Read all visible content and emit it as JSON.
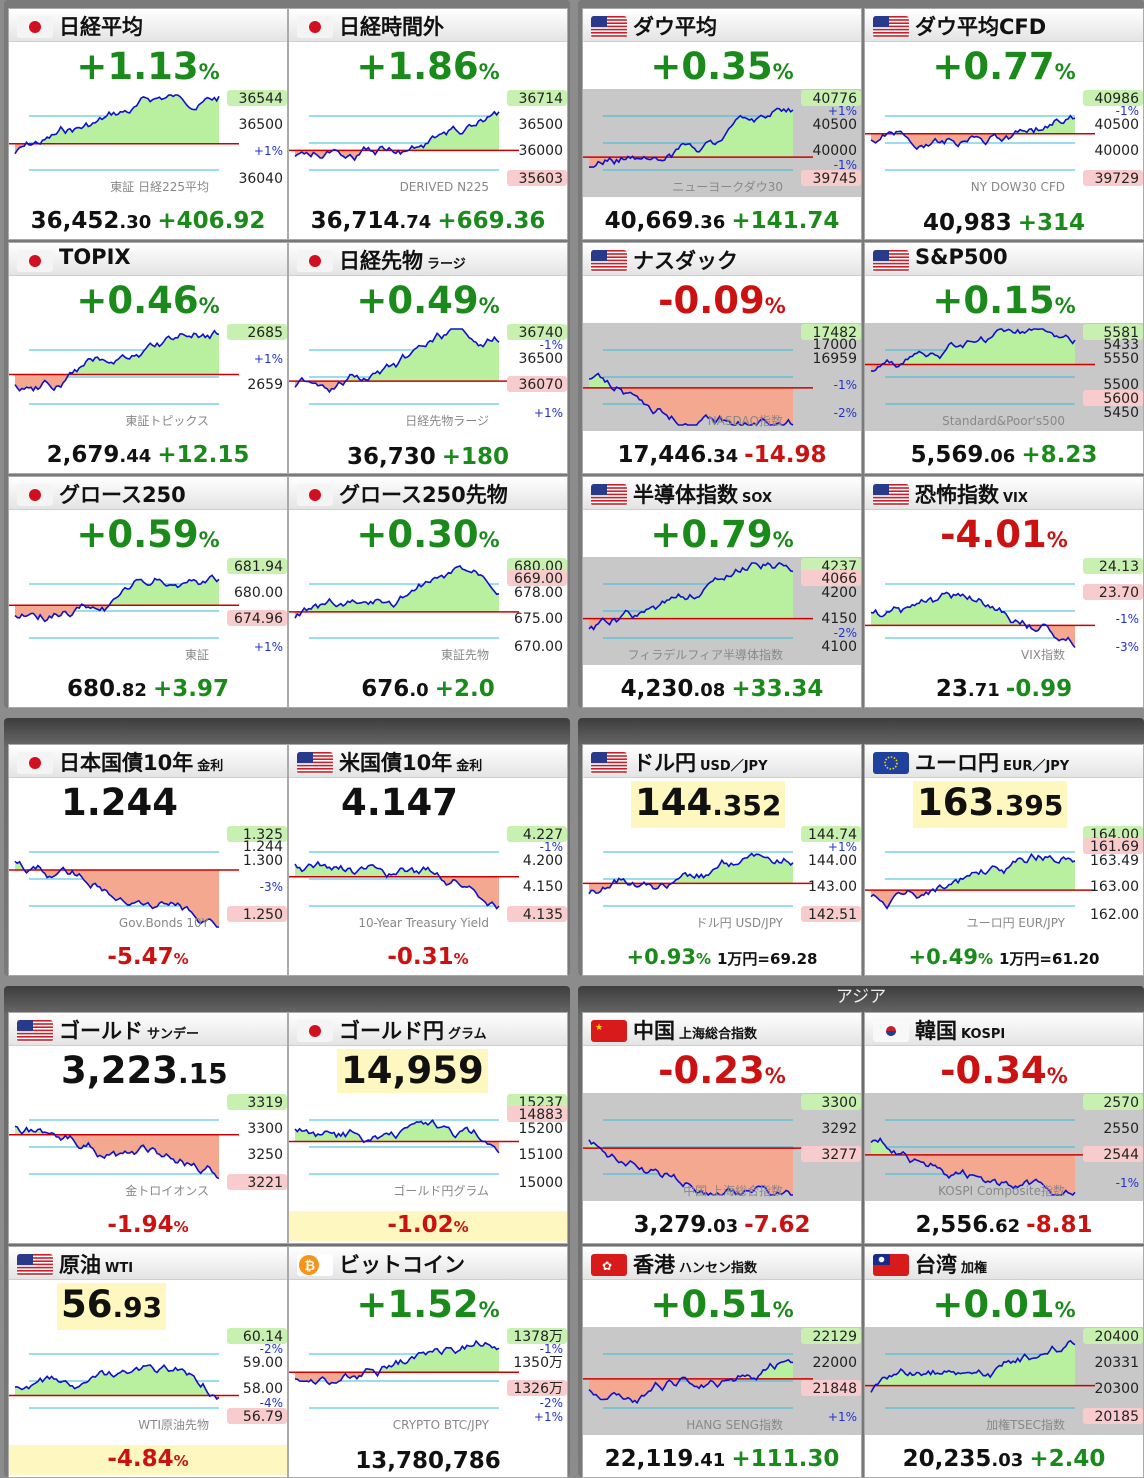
{
  "sections": {
    "asia_label": "アジア"
  },
  "cards": [
    {
      "id": "nikkei",
      "flag": "jp",
      "title": "日経平均",
      "sub": "",
      "pct": "+1.13",
      "pct_unit": "%",
      "dir": "up",
      "price_int": "36,452",
      "price_dec": ".30",
      "change": "+406.92",
      "chg_dir": "up",
      "chart_label": "東証 日経225平均",
      "labels": [
        "36544",
        "36500",
        "+1%",
        "36040"
      ]
    },
    {
      "id": "nikkei_after",
      "flag": "jp",
      "title": "日経時間外",
      "sub": "",
      "pct": "+1.86",
      "pct_unit": "%",
      "dir": "up",
      "price_int": "36,714",
      "price_dec": ".74",
      "change": "+669.36",
      "chg_dir": "up",
      "chart_label": "DERIVED N225",
      "labels": [
        "36714",
        "36500",
        "36000",
        "35603"
      ]
    },
    {
      "id": "dow",
      "flag": "us",
      "title": "ダウ平均",
      "sub": "",
      "pct": "+0.35",
      "pct_unit": "%",
      "dir": "up",
      "price_int": "40,669",
      "price_dec": ".36",
      "change": "+141.74",
      "chg_dir": "up",
      "chart_label": "ニューヨークダウ30",
      "labels": [
        "40776",
        "40500",
        "40000",
        "39745",
        "+1%",
        "-1%"
      ]
    },
    {
      "id": "dow_cfd",
      "flag": "us",
      "title": "ダウ平均CFD",
      "sub": "",
      "pct": "+0.77",
      "pct_unit": "%",
      "dir": "up",
      "price_int": "40,983",
      "price_dec": "",
      "change": "+314",
      "chg_dir": "up",
      "chart_label": "NY DOW30 CFD",
      "labels": [
        "40986",
        "40500",
        "40000",
        "39729",
        "-1%"
      ]
    },
    {
      "id": "topix",
      "flag": "jp",
      "title": "TOPIX",
      "sub": "",
      "pct": "+0.46",
      "pct_unit": "%",
      "dir": "up",
      "price_int": "2,679",
      "price_dec": ".44",
      "change": "+12.15",
      "chg_dir": "up",
      "chart_label": "東証トピックス",
      "labels": [
        "2685",
        "+1%",
        "2659"
      ]
    },
    {
      "id": "nikkei_fut",
      "flag": "jp",
      "title": "日経先物",
      "sub": "ラージ",
      "pct": "+0.49",
      "pct_unit": "%",
      "dir": "up",
      "price_int": "36,730",
      "price_dec": "",
      "change": "+180",
      "chg_dir": "up",
      "chart_label": "日経先物ラージ",
      "labels": [
        "36740",
        "36500",
        "36070",
        "+1%",
        "-1%"
      ]
    },
    {
      "id": "nasdaq",
      "flag": "us",
      "title": "ナスダック",
      "sub": "",
      "pct": "-0.09",
      "pct_unit": "%",
      "dir": "down",
      "price_int": "17,446",
      "price_dec": ".34",
      "change": "-14.98",
      "chg_dir": "down",
      "chart_label": "NASDAQ指数",
      "labels": [
        "17482",
        "16959",
        "-1%",
        "-2%",
        "17000"
      ]
    },
    {
      "id": "sp500",
      "flag": "us",
      "title": "S&P500",
      "sub": "",
      "pct": "+0.15",
      "pct_unit": "%",
      "dir": "up",
      "price_int": "5,569",
      "price_dec": ".06",
      "change": "+8.23",
      "chg_dir": "up",
      "chart_label": "Standard&Poor's500",
      "labels": [
        "5581",
        "5550",
        "5500",
        "5450",
        "5433",
        "5600"
      ]
    },
    {
      "id": "growth250",
      "flag": "jp",
      "title": "グロース250",
      "sub": "",
      "pct": "+0.59",
      "pct_unit": "%",
      "dir": "up",
      "price_int": "680",
      "price_dec": ".82",
      "change": "+3.97",
      "chg_dir": "up",
      "chart_label": "東証",
      "labels": [
        "681.94",
        "680.00",
        "674.96",
        "+1%"
      ]
    },
    {
      "id": "growth250_fut",
      "flag": "jp",
      "title": "グロース250先物",
      "sub": "",
      "pct": "+0.30",
      "pct_unit": "%",
      "dir": "up",
      "price_int": "676",
      "price_dec": ".0",
      "change": "+2.0",
      "chg_dir": "up",
      "chart_label": "東証先物",
      "labels": [
        "680.00",
        "678.00",
        "675.00",
        "670.00",
        "669.00"
      ]
    },
    {
      "id": "sox",
      "flag": "us",
      "title": "半導体指数",
      "sub": "SOX",
      "pct": "+0.79",
      "pct_unit": "%",
      "dir": "up",
      "price_int": "4,230",
      "price_dec": ".08",
      "change": "+33.34",
      "chg_dir": "up",
      "chart_label": "フィラデルフィア半導体指数",
      "labels": [
        "4237",
        "4200",
        "4150",
        "4100",
        "4066",
        "-2%"
      ]
    },
    {
      "id": "vix",
      "flag": "us",
      "title": "恐怖指数",
      "sub": "VIX",
      "pct": "-4.01",
      "pct_unit": "%",
      "dir": "down",
      "price_int": "23",
      "price_dec": ".71",
      "change": "-0.99",
      "chg_dir": "up",
      "chart_label": "VIX指数",
      "labels": [
        "24.13",
        "23.70",
        "-1%",
        "-3%"
      ]
    },
    {
      "id": "jgb10",
      "flag": "jp",
      "title": "日本国債10年",
      "sub": "金利",
      "big_int": "1.244",
      "big_dec": "",
      "pct": "-5.47",
      "pct_unit": "%",
      "dir": "down",
      "chart_label": "Gov.Bonds 10Y",
      "labels": [
        "1.325",
        "1.300",
        "-3%",
        "1.250",
        "1.244"
      ]
    },
    {
      "id": "ust10",
      "flag": "us",
      "title": "米国債10年",
      "sub": "金利",
      "big_int": "4.147",
      "big_dec": "",
      "pct": "-0.31",
      "pct_unit": "%",
      "dir": "down",
      "chart_label": "10-Year Treasury Yield",
      "labels": [
        "4.227",
        "4.200",
        "4.150",
        "4.135",
        "-1%"
      ]
    },
    {
      "id": "usdjpy",
      "flag": "us",
      "title": "ドル円",
      "sub": "USD／JPY",
      "big_int": "144",
      "big_dec": ".352",
      "pct": "+0.93",
      "pct_unit": "%",
      "dir": "up",
      "rate": "1万円=69.28",
      "chart_label": "ドル円 USD/JPY",
      "labels": [
        "144.74",
        "144.00",
        "143.00",
        "142.51",
        "+1%"
      ]
    },
    {
      "id": "eurjpy",
      "flag": "eu",
      "title": "ユーロ円",
      "sub": "EUR／JPY",
      "big_int": "163",
      "big_dec": ".395",
      "pct": "+0.49",
      "pct_unit": "%",
      "dir": "up",
      "rate": "1万円=61.20",
      "chart_label": "ユーロ円 EUR/JPY",
      "labels": [
        "164.00",
        "163.49",
        "163.00",
        "162.00",
        "161.69"
      ]
    },
    {
      "id": "gold",
      "flag": "us",
      "title": "ゴールド",
      "sub": "サンデー",
      "big_int": "3,223",
      "big_dec": ".15",
      "pct": "-1.94",
      "pct_unit": "%",
      "dir": "down",
      "chart_label": "金トロイオンス",
      "labels": [
        "3319",
        "3300",
        "3250",
        "3221"
      ]
    },
    {
      "id": "gold_jpy",
      "flag": "jp",
      "title": "ゴールド円",
      "sub": "グラム",
      "big_int": "14,959",
      "big_dec": "",
      "pct": "-1.02",
      "pct_unit": "%",
      "dir": "down",
      "chart_label": "ゴールド円グラム",
      "labels": [
        "15237",
        "15200",
        "15100",
        "15000",
        "14883"
      ]
    },
    {
      "id": "china",
      "flag": "cn",
      "title": "中国",
      "sub": "上海総合指数",
      "pct": "-0.23",
      "pct_unit": "%",
      "dir": "down",
      "price_int": "3,279",
      "price_dec": ".03",
      "change": "-7.62",
      "chg_dir": "down",
      "chart_label": "中国 上海総合指数",
      "labels": [
        "3300",
        "3292",
        "3277"
      ]
    },
    {
      "id": "korea",
      "flag": "kr",
      "title": "韓国",
      "sub": "KOSPI",
      "pct": "-0.34",
      "pct_unit": "%",
      "dir": "down",
      "price_int": "2,556",
      "price_dec": ".62",
      "change": "-8.81",
      "chg_dir": "down",
      "chart_label": "KOSPI Composite指数",
      "labels": [
        "2570",
        "2550",
        "2544",
        "-1%"
      ]
    },
    {
      "id": "oil",
      "flag": "us",
      "title": "原油",
      "sub": "WTI",
      "big_int": "56",
      "big_dec": ".93",
      "pct": "-4.84",
      "pct_unit": "%",
      "dir": "down",
      "chart_label": "WTI原油先物",
      "labels": [
        "60.14",
        "59.00",
        "58.00",
        "56.79",
        "-2%",
        "-4%"
      ]
    },
    {
      "id": "bitcoin",
      "flag": "btc",
      "title": "ビットコイン",
      "sub": "",
      "pct": "+1.52",
      "pct_unit": "%",
      "dir": "up",
      "price_int": "13,780,786",
      "price_dec": "",
      "change": "",
      "chg_dir": "up",
      "chart_label": "CRYPTO BTC/JPY",
      "labels": [
        "1378万",
        "1350万",
        "1326万",
        "+1%",
        "-1%",
        "-2%"
      ]
    },
    {
      "id": "hk",
      "flag": "hk",
      "title": "香港",
      "sub": "ハンセン指数",
      "pct": "+0.51",
      "pct_unit": "%",
      "dir": "up",
      "price_int": "22,119",
      "price_dec": ".41",
      "change": "+111.30",
      "chg_dir": "up",
      "chart_label": "HANG SENG指数",
      "labels": [
        "22129",
        "22000",
        "21848",
        "+1%"
      ]
    },
    {
      "id": "taiwan",
      "flag": "tw",
      "title": "台湾",
      "sub": "加権",
      "pct": "+0.01",
      "pct_unit": "%",
      "dir": "up",
      "price_int": "20,235",
      "price_dec": ".03",
      "change": "+2.40",
      "chg_dir": "up",
      "chart_label": "加権TSEC指数",
      "labels": [
        "20400",
        "20331",
        "20300",
        "20185"
      ]
    }
  ],
  "colors": {
    "up": "#1a8a1a",
    "down": "#cc1111",
    "line": "#1010cc",
    "refline": "#cc0000",
    "greenfill": "#b8f0a0",
    "redfill": "#f4a890"
  }
}
